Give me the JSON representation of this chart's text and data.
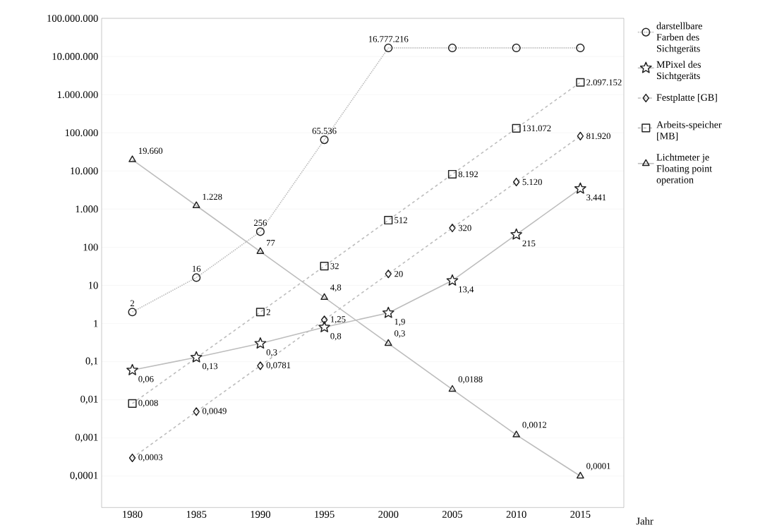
{
  "chart_data": {
    "type": "line",
    "xlabel": "Jahr",
    "log": "y",
    "legend": "right",
    "grid": "y",
    "x": [
      1980,
      1985,
      1990,
      1995,
      2000,
      2005,
      2010,
      2015
    ],
    "xlim": [
      1977.6,
      2018.4
    ],
    "xticks": [
      1980,
      1985,
      1990,
      1995,
      2000,
      2005,
      2010,
      2015
    ],
    "ylim": [
      1.5e-05,
      100000000
    ],
    "yticks": [
      {
        "value": 0.0001,
        "label": "0,0001"
      },
      {
        "value": 0.001,
        "label": "0,001"
      },
      {
        "value": 0.01,
        "label": "0,01"
      },
      {
        "value": 0.1,
        "label": "0,1"
      },
      1,
      10,
      100,
      {
        "value": 1000,
        "label": "1.000"
      },
      {
        "value": 10000,
        "label": "10.000"
      },
      {
        "value": 100000,
        "label": "100.000"
      },
      {
        "value": 1000000,
        "label": "1.000.000"
      },
      {
        "value": 10000000,
        "label": "10.000.000"
      },
      {
        "value": 100000000,
        "label": "100.000.000"
      }
    ],
    "series": [
      {
        "name": "darstellbare Farben des Sichtgeräts",
        "color": "#222222",
        "marker": "circle",
        "line_style": "dotted",
        "values": [
          2,
          16,
          256,
          65536,
          16777216,
          16777216,
          16777216,
          16777216
        ],
        "value_labels": [
          "2",
          "16",
          "256",
          "65.536",
          "16.777.216",
          null,
          null,
          null
        ]
      },
      {
        "name": "MPixel des Sichtgeräts",
        "color": "#222222",
        "marker": "star",
        "line_style": "solid",
        "values": [
          0.06,
          0.13,
          0.3,
          0.8,
          1.9,
          13.4,
          215,
          3441
        ],
        "value_labels": [
          "0,06",
          "0,13",
          "0,3",
          "0,8",
          "1,9",
          "13,4",
          "215",
          "3.441"
        ]
      },
      {
        "name": "Festplatte [GB]",
        "color": "#222222",
        "marker": "diamond",
        "line_style": "dashed",
        "values": [
          0.0003,
          0.0049,
          0.0781,
          1.25,
          20,
          320,
          5120,
          81920
        ],
        "value_labels": [
          "0,0003",
          "0,0049",
          "0,0781",
          "1,25",
          "20",
          "320",
          "5.120",
          "81.920"
        ]
      },
      {
        "name": "Arbeits-speicher [MB]",
        "color": "#222222",
        "marker": "square",
        "line_style": "dashed",
        "x": [
          1980,
          1990,
          1995,
          2000,
          2005,
          2010,
          2015
        ],
        "values": [
          0.008,
          2,
          32,
          512,
          8192,
          131072,
          2097152
        ],
        "value_labels": [
          "0,008",
          "2",
          "32",
          "512",
          "8.192",
          "131.072",
          "2.097.152"
        ]
      },
      {
        "name": "Lichtmeter je Floating point operation",
        "color": "#222222",
        "marker": "triangle",
        "line_style": "solid",
        "values": [
          19660,
          1228,
          77,
          4.8,
          0.3,
          0.0188,
          0.0012,
          0.0001
        ],
        "value_labels": [
          "19.660",
          "1.228",
          "77",
          "4,8",
          "0,3",
          "0,0188",
          "0,0012",
          "0,0001"
        ]
      }
    ]
  }
}
